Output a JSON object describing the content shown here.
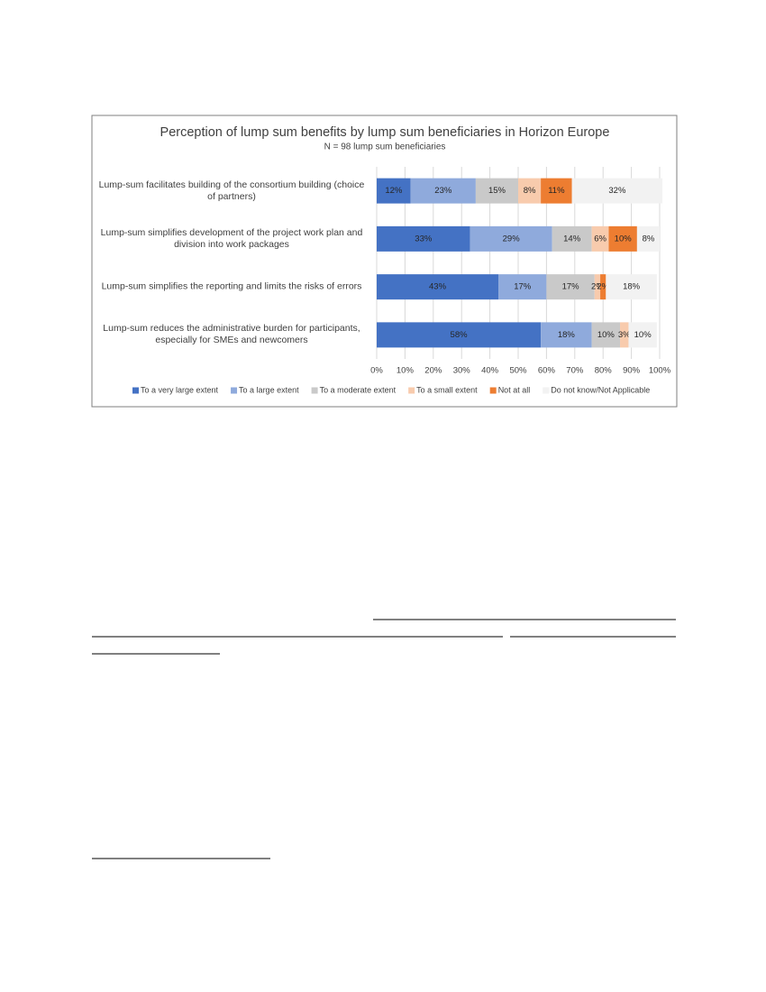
{
  "chart_data": {
    "type": "stacked_bar_horizontal",
    "title": "Perception of lump sum benefits by lump sum beneficiaries in Horizon Europe",
    "subtitle": "N = 98 lump sum beneficiaries",
    "categories": [
      "Lump-sum facilitates building of the consortium building (choice of partners)",
      "Lump-sum simplifies development of the project work plan and division into work packages",
      "Lump-sum simplifies the reporting and limits the risks of errors",
      "Lump-sum reduces the administrative burden for participants, especially for SMEs and newcomers"
    ],
    "series": [
      {
        "name": "To a very large extent",
        "color": "#4472c4",
        "values": [
          12,
          33,
          43,
          58
        ],
        "value_labels": [
          "12%",
          "33%",
          "43%",
          "58%"
        ]
      },
      {
        "name": "To a large extent",
        "color": "#8faadc",
        "values": [
          23,
          29,
          17,
          18
        ],
        "value_labels": [
          "23%",
          "29%",
          "17%",
          "18%"
        ]
      },
      {
        "name": "To a moderate extent",
        "color": "#c9c9c9",
        "values": [
          15,
          14,
          17,
          10
        ],
        "value_labels": [
          "15%",
          "14%",
          "17%",
          "10%"
        ]
      },
      {
        "name": "To a small extent",
        "color": "#f8cbad",
        "values": [
          8,
          6,
          2,
          3
        ],
        "value_labels": [
          "8%",
          "6%",
          "2%",
          "3%"
        ]
      },
      {
        "name": "Not at all",
        "color": "#ed7d31",
        "values": [
          11,
          10,
          2,
          0
        ],
        "value_labels": [
          "11%",
          "10%",
          "2%",
          null
        ]
      },
      {
        "name": "Do not know/Not Applicable",
        "color": "#f2f2f2",
        "values": [
          32,
          8,
          18,
          10
        ],
        "value_labels": [
          "32%",
          "8%",
          "18%",
          "10%"
        ]
      }
    ],
    "xlim": [
      0,
      100
    ],
    "xticks": [
      {
        "value": 0,
        "label": "0%"
      },
      {
        "value": 10,
        "label": "10%"
      },
      {
        "value": 20,
        "label": "20%"
      },
      {
        "value": 30,
        "label": "30%"
      },
      {
        "value": 40,
        "label": "40%"
      },
      {
        "value": 50,
        "label": "50%"
      },
      {
        "value": 60,
        "label": "60%"
      },
      {
        "value": 70,
        "label": "70%"
      },
      {
        "value": 80,
        "label": "80%"
      },
      {
        "value": 90,
        "label": "90%"
      },
      {
        "value": 100,
        "label": "100%"
      }
    ],
    "grid": true,
    "legend": "bottom"
  }
}
